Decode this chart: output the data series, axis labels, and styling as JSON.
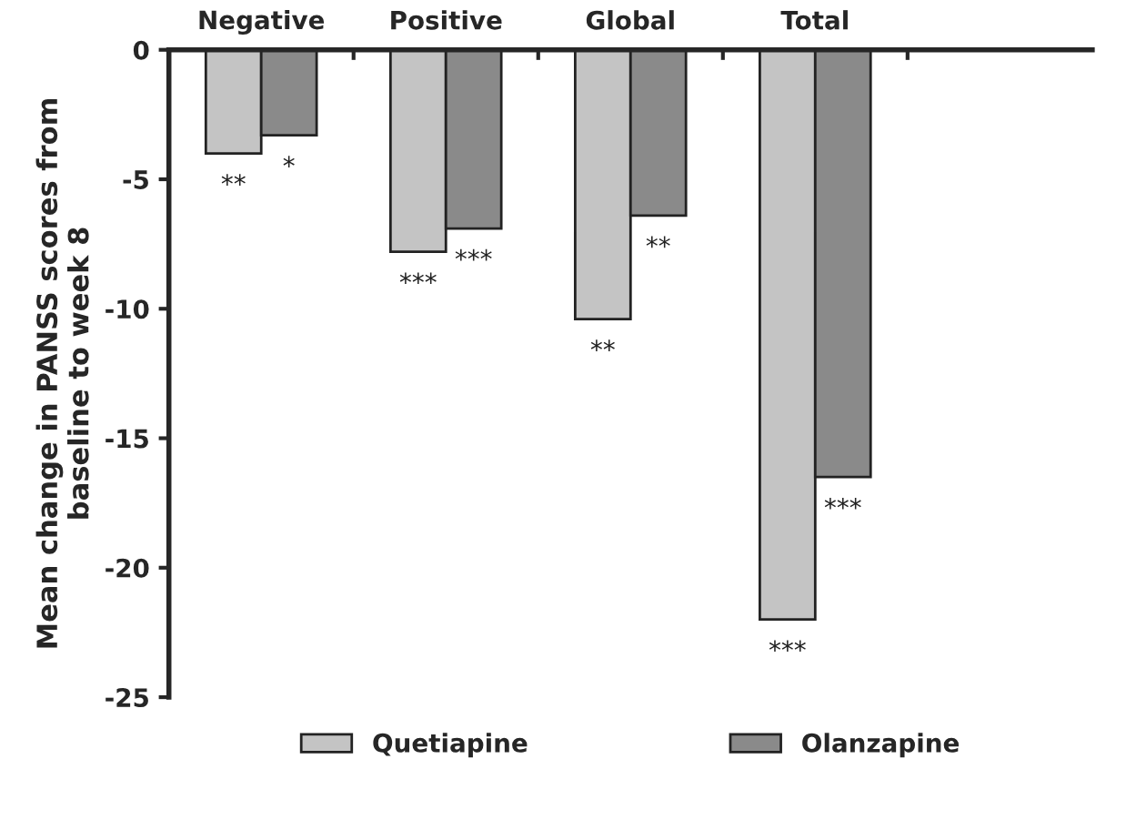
{
  "chart_data": {
    "type": "bar",
    "ylabel": "Mean change in PANSS scores from\nbaseline to week 8",
    "categories": [
      "Negative",
      "Positive",
      "Global",
      "Total"
    ],
    "series": [
      {
        "name": "Quetiapine",
        "color": "#c4c4c4",
        "values": [
          -4.0,
          -7.8,
          -10.4,
          -22.0
        ],
        "value_labels": [
          "**",
          "***",
          "**",
          "***"
        ]
      },
      {
        "name": "Olanzapine",
        "color": "#8a8a8a",
        "values": [
          -3.3,
          -6.9,
          -6.4,
          -16.5
        ],
        "value_labels": [
          "*",
          "***",
          "**",
          "***"
        ]
      }
    ],
    "ylim": [
      -25,
      0
    ],
    "yticks": [
      0,
      -5,
      -10,
      -15,
      -20,
      -25
    ],
    "grid": false,
    "legend": "bottom"
  }
}
